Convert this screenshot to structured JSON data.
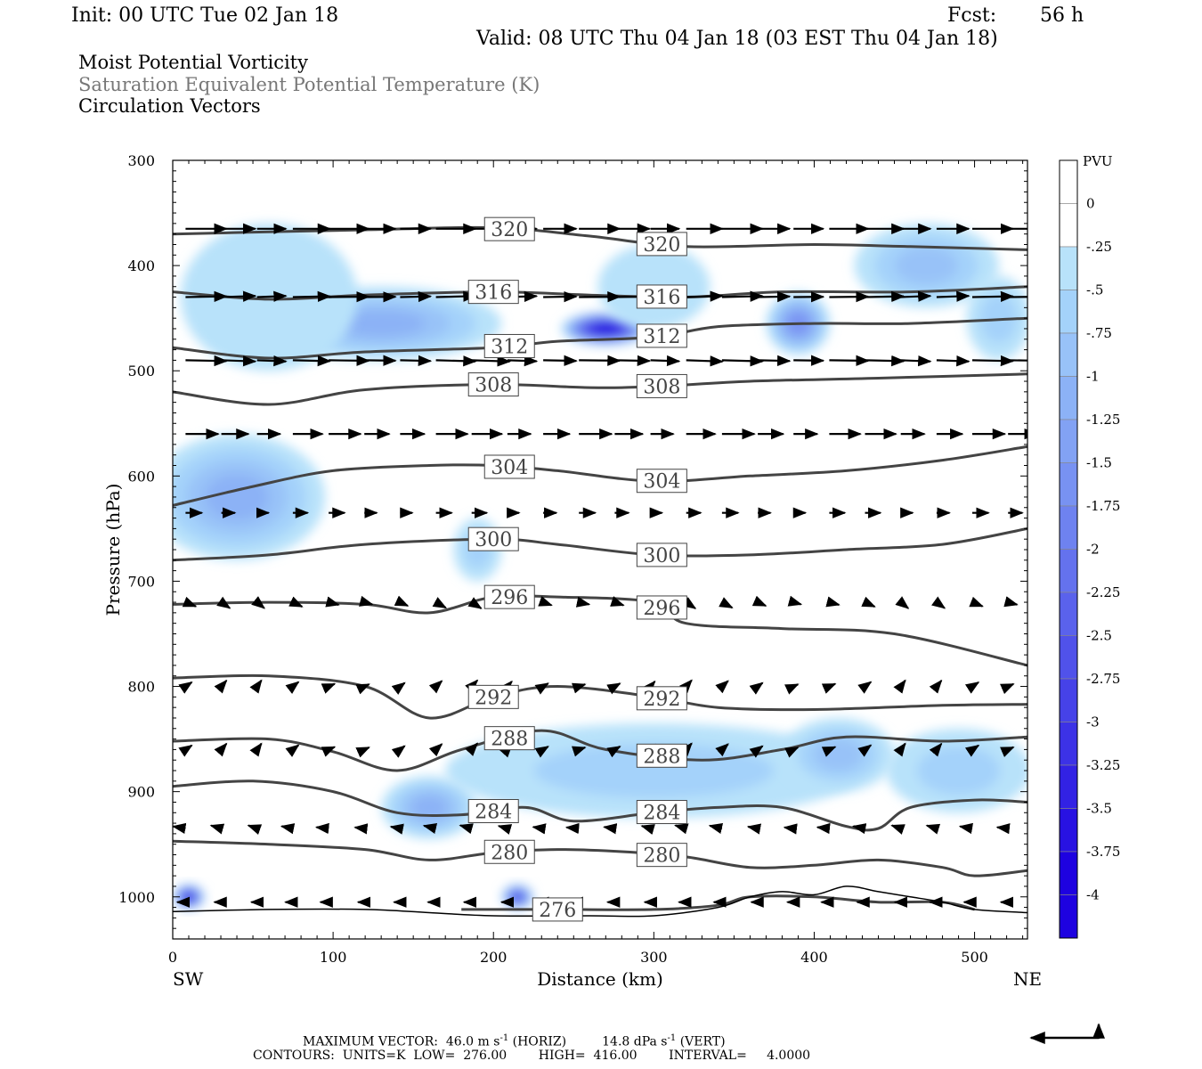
{
  "header": {
    "init": "Init: 00 UTC Tue 02 Jan 18",
    "fcst_label": "Fcst:",
    "fcst_value": "56 h",
    "valid": "Valid: 08 UTC Thu 04 Jan 18 (03 EST Thu 04 Jan 18)",
    "fields": [
      "Moist Potential Vorticity",
      "Saturation Equivalent Potential Temperature (K)",
      "Circulation Vectors"
    ]
  },
  "colors": {
    "contour": "#444444",
    "arrow": "#000000",
    "terrain": "#000000"
  },
  "chart_data": {
    "type": "contour",
    "xlabel": "Distance (km)",
    "ylabel": "Pressure (hPa)",
    "x_end_labels": [
      "SW",
      "NE"
    ],
    "xlim": [
      0,
      533
    ],
    "ylim": [
      1040,
      300
    ],
    "x_ticks": [
      0,
      100,
      200,
      300,
      400,
      500
    ],
    "y_ticks": [
      300,
      400,
      500,
      600,
      700,
      800,
      900,
      1000
    ],
    "colorbar": {
      "unit": "PVU",
      "labels": [
        "0",
        "-.25",
        "-.5",
        "-.75",
        "-1",
        "-1.25",
        "-1.5",
        "-1.75",
        "-2",
        "-2.25",
        "-2.5",
        "-2.75",
        "-3",
        "-3.25",
        "-3.5",
        "-3.75",
        "-4"
      ],
      "colors": [
        "#ffffff",
        "#ffffff",
        "#b8e2fa",
        "#a4d2fa",
        "#98c2f8",
        "#8cb2f6",
        "#82a2f4",
        "#7892f2",
        "#6e82f0",
        "#6472ee",
        "#5a62ec",
        "#5052ea",
        "#4642e8",
        "#3c32e6",
        "#3222e4",
        "#2812e2",
        "#1e02e0"
      ]
    },
    "contours": [
      {
        "label": "320",
        "points": [
          [
            0,
            370
          ],
          [
            60,
            368
          ],
          [
            120,
            366
          ],
          [
            200,
            364
          ],
          [
            260,
            372
          ],
          [
            320,
            382
          ],
          [
            400,
            380
          ],
          [
            460,
            382
          ],
          [
            533,
            385
          ]
        ]
      },
      {
        "label": "316",
        "points": [
          [
            0,
            425
          ],
          [
            60,
            432
          ],
          [
            120,
            428
          ],
          [
            200,
            425
          ],
          [
            260,
            428
          ],
          [
            320,
            430
          ],
          [
            380,
            425
          ],
          [
            460,
            425
          ],
          [
            533,
            420
          ]
        ]
      },
      {
        "label": "312",
        "points": [
          [
            0,
            478
          ],
          [
            60,
            488
          ],
          [
            120,
            482
          ],
          [
            200,
            478
          ],
          [
            240,
            472
          ],
          [
            300,
            468
          ],
          [
            340,
            458
          ],
          [
            400,
            455
          ],
          [
            460,
            455
          ],
          [
            533,
            450
          ]
        ]
      },
      {
        "label": "308",
        "points": [
          [
            0,
            520
          ],
          [
            60,
            532
          ],
          [
            120,
            518
          ],
          [
            200,
            513
          ],
          [
            260,
            516
          ],
          [
            300,
            515
          ],
          [
            360,
            510
          ],
          [
            440,
            507
          ],
          [
            533,
            503
          ]
        ]
      },
      {
        "label": "304",
        "points": [
          [
            0,
            628
          ],
          [
            50,
            610
          ],
          [
            100,
            595
          ],
          [
            160,
            590
          ],
          [
            200,
            590
          ],
          [
            240,
            595
          ],
          [
            300,
            605
          ],
          [
            360,
            600
          ],
          [
            420,
            595
          ],
          [
            480,
            585
          ],
          [
            533,
            572
          ]
        ]
      },
      {
        "label": "300",
        "points": [
          [
            0,
            680
          ],
          [
            60,
            675
          ],
          [
            120,
            665
          ],
          [
            200,
            660
          ],
          [
            240,
            665
          ],
          [
            300,
            675
          ],
          [
            360,
            675
          ],
          [
            420,
            670
          ],
          [
            480,
            665
          ],
          [
            533,
            650
          ]
        ]
      },
      {
        "label": "296",
        "points": [
          [
            0,
            722
          ],
          [
            60,
            720
          ],
          [
            120,
            722
          ],
          [
            160,
            730
          ],
          [
            200,
            715
          ],
          [
            240,
            715
          ],
          [
            300,
            720
          ],
          [
            320,
            740
          ],
          [
            380,
            745
          ],
          [
            450,
            750
          ],
          [
            533,
            780
          ]
        ]
      },
      {
        "label": "292",
        "points": [
          [
            0,
            792
          ],
          [
            60,
            790
          ],
          [
            120,
            800
          ],
          [
            160,
            830
          ],
          [
            200,
            810
          ],
          [
            240,
            800
          ],
          [
            300,
            810
          ],
          [
            340,
            820
          ],
          [
            400,
            822
          ],
          [
            480,
            818
          ],
          [
            533,
            817
          ]
        ]
      },
      {
        "label": "288",
        "points": [
          [
            0,
            852
          ],
          [
            60,
            850
          ],
          [
            100,
            862
          ],
          [
            140,
            880
          ],
          [
            180,
            860
          ],
          [
            230,
            842
          ],
          [
            270,
            860
          ],
          [
            330,
            870
          ],
          [
            380,
            860
          ],
          [
            420,
            848
          ],
          [
            480,
            852
          ],
          [
            533,
            848
          ]
        ]
      },
      {
        "label": "284",
        "points": [
          [
            0,
            895
          ],
          [
            50,
            890
          ],
          [
            100,
            900
          ],
          [
            140,
            920
          ],
          [
            180,
            922
          ],
          [
            220,
            915
          ],
          [
            250,
            928
          ],
          [
            300,
            920
          ],
          [
            340,
            915
          ],
          [
            380,
            915
          ],
          [
            420,
            933
          ],
          [
            440,
            935
          ],
          [
            460,
            915
          ],
          [
            500,
            908
          ],
          [
            533,
            910
          ]
        ]
      },
      {
        "label": "280",
        "points": [
          [
            0,
            947
          ],
          [
            60,
            950
          ],
          [
            120,
            955
          ],
          [
            160,
            965
          ],
          [
            200,
            958
          ],
          [
            240,
            955
          ],
          [
            280,
            957
          ],
          [
            320,
            962
          ],
          [
            360,
            972
          ],
          [
            400,
            970
          ],
          [
            440,
            965
          ],
          [
            480,
            972
          ],
          [
            500,
            980
          ],
          [
            533,
            975
          ]
        ]
      },
      {
        "label": "276",
        "points": [
          [
            180,
            1012
          ],
          [
            240,
            1012
          ],
          [
            300,
            1012
          ],
          [
            340,
            1008
          ],
          [
            360,
            1000
          ],
          [
            400,
            1000
          ],
          [
            440,
            1005
          ],
          [
            480,
            1005
          ],
          [
            500,
            1012
          ]
        ]
      }
    ],
    "terrain": [
      [
        0,
        1014
      ],
      [
        60,
        1012
      ],
      [
        120,
        1012
      ],
      [
        160,
        1015
      ],
      [
        200,
        1018
      ],
      [
        260,
        1018
      ],
      [
        300,
        1018
      ],
      [
        340,
        1010
      ],
      [
        360,
        1000
      ],
      [
        380,
        995
      ],
      [
        400,
        998
      ],
      [
        420,
        990
      ],
      [
        440,
        995
      ],
      [
        460,
        1000
      ],
      [
        480,
        1005
      ],
      [
        500,
        1012
      ],
      [
        533,
        1015
      ]
    ],
    "pv_blobs": [
      {
        "x": 270,
        "p": 460,
        "rx": 28,
        "rp": 16,
        "level": 16
      },
      {
        "x": 130,
        "p": 455,
        "rx": 75,
        "rp": 35,
        "level": 5
      },
      {
        "x": 60,
        "p": 430,
        "rx": 55,
        "rp": 70,
        "level": 2
      },
      {
        "x": 300,
        "p": 420,
        "rx": 35,
        "rp": 40,
        "level": 2
      },
      {
        "x": 390,
        "p": 455,
        "rx": 20,
        "rp": 30,
        "level": 7
      },
      {
        "x": 470,
        "p": 400,
        "rx": 45,
        "rp": 40,
        "level": 4
      },
      {
        "x": 515,
        "p": 450,
        "rx": 20,
        "rp": 40,
        "level": 3
      },
      {
        "x": 40,
        "p": 620,
        "rx": 55,
        "rp": 60,
        "level": 5
      },
      {
        "x": 190,
        "p": 670,
        "rx": 15,
        "rp": 30,
        "level": 3
      },
      {
        "x": 300,
        "p": 880,
        "rx": 130,
        "rp": 45,
        "level": 3
      },
      {
        "x": 160,
        "p": 915,
        "rx": 30,
        "rp": 30,
        "level": 5
      },
      {
        "x": 415,
        "p": 865,
        "rx": 35,
        "rp": 35,
        "level": 4
      },
      {
        "x": 490,
        "p": 880,
        "rx": 45,
        "rp": 40,
        "level": 3
      },
      {
        "x": 10,
        "p": 1000,
        "rx": 10,
        "rp": 12,
        "level": 14
      },
      {
        "x": 215,
        "p": 1000,
        "rx": 10,
        "rp": 12,
        "level": 12
      }
    ],
    "vectors": [
      {
        "p": 365,
        "u": 1.0,
        "w": 0.0
      },
      {
        "p": 430,
        "u": 1.0,
        "w": 0.02
      },
      {
        "p": 490,
        "u": 1.0,
        "w": -0.02
      },
      {
        "p": 560,
        "u": 0.8,
        "w": 0.0
      },
      {
        "p": 635,
        "u": 0.4,
        "w": 0.0
      },
      {
        "p": 720,
        "u": 0.25,
        "w": -0.1
      },
      {
        "p": 800,
        "u": 0.15,
        "w": 0.1
      },
      {
        "p": 860,
        "u": 0.15,
        "w": 0.1
      },
      {
        "p": 935,
        "u": -0.3,
        "w": 0.05
      },
      {
        "p": 1005,
        "u": -0.2,
        "w": 0.0
      }
    ]
  },
  "footer": {
    "max_vector_label": "MAXIMUM VECTOR:",
    "horiz_value": "46.0 m s",
    "horiz_unit": "(HORIZ)",
    "vert_value": "14.8 dPa s",
    "vert_unit": "(VERT)",
    "exponent": "-1",
    "contours": "CONTOURS:  UNITS=K  LOW=  276.00        HIGH=  416.00        INTERVAL=     4.0000"
  }
}
